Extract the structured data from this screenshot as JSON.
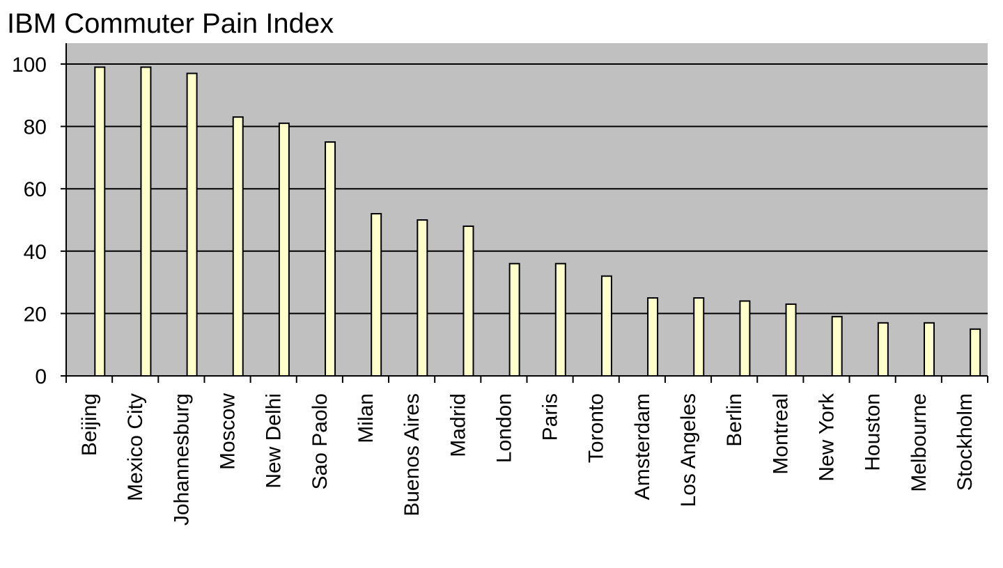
{
  "chart_data": {
    "type": "bar",
    "title": "IBM Commuter Pain Index",
    "xlabel": "",
    "ylabel": "",
    "categories": [
      "Beijing",
      "Mexico City",
      "Johannesburg",
      "Moscow",
      "New Delhi",
      "Sao Paolo",
      "Milan",
      "Buenos Aires",
      "Madrid",
      "London",
      "Paris",
      "Toronto",
      "Amsterdam",
      "Los Angeles",
      "Berlin",
      "Montreal",
      "New York",
      "Houston",
      "Melbourne",
      "Stockholm"
    ],
    "values": [
      99,
      99,
      97,
      83,
      81,
      75,
      52,
      50,
      48,
      36,
      36,
      32,
      25,
      25,
      24,
      23,
      19,
      17,
      17,
      15
    ],
    "ylim": [
      0,
      100
    ],
    "yticks": [
      0,
      20,
      40,
      60,
      80,
      100
    ],
    "grid": true,
    "legend": "none",
    "colors": {
      "plot_background": "#c0c0c0",
      "bar_fill": "#ffffcc",
      "bar_stroke": "#000000",
      "gridline": "#000000"
    }
  }
}
